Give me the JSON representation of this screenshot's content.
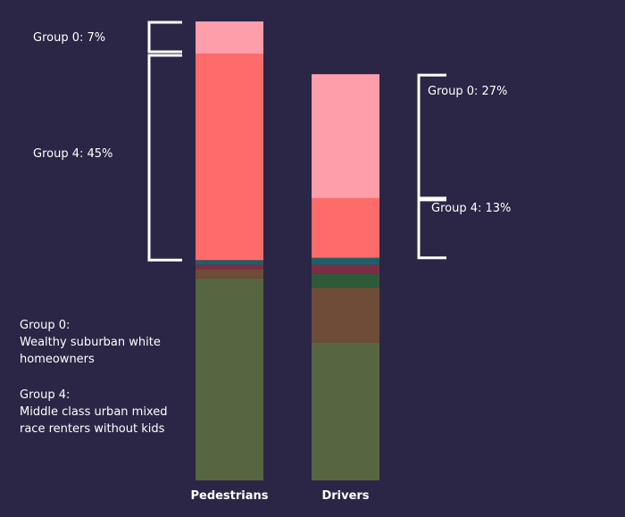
{
  "chart_data": {
    "type": "bar",
    "stacked": true,
    "normalized_to": 100,
    "categories": [
      "Pedestrians",
      "Drivers"
    ],
    "segments_bottom_to_top": [
      {
        "key": "dark-green",
        "color": "#566640",
        "values": [
          44,
          30
        ]
      },
      {
        "key": "brown",
        "color": "#6e4c38",
        "values": [
          2,
          12
        ]
      },
      {
        "key": "forest-green",
        "color": "#2f5a3a",
        "values": [
          0,
          3
        ]
      },
      {
        "key": "maroon",
        "color": "#7a2e45",
        "values": [
          1,
          2
        ]
      },
      {
        "key": "teal",
        "color": "#1f5f66",
        "values": [
          1,
          1.5
        ]
      },
      {
        "key": "group-4",
        "color": "#ff6b6b",
        "values": [
          45,
          13
        ]
      },
      {
        "key": "group-0",
        "color": "#ff9eab",
        "values": [
          7,
          27
        ]
      }
    ],
    "annotations": {
      "pedestrians_group0": "Group 0: 7%",
      "pedestrians_group4": "Group 4: 45%",
      "drivers_group0": "Group 0: 27%",
      "drivers_group4": "Group 4: 13%"
    },
    "legend": {
      "group0_title": "Group 0:",
      "group0_line1": "Wealthy suburban white",
      "group0_line2": "homeowners",
      "group4_title": "Group 4:",
      "group4_line1": "Middle class urban mixed",
      "group4_line2": "race renters without kids"
    },
    "title": "",
    "xlabel": "",
    "ylabel": ""
  }
}
